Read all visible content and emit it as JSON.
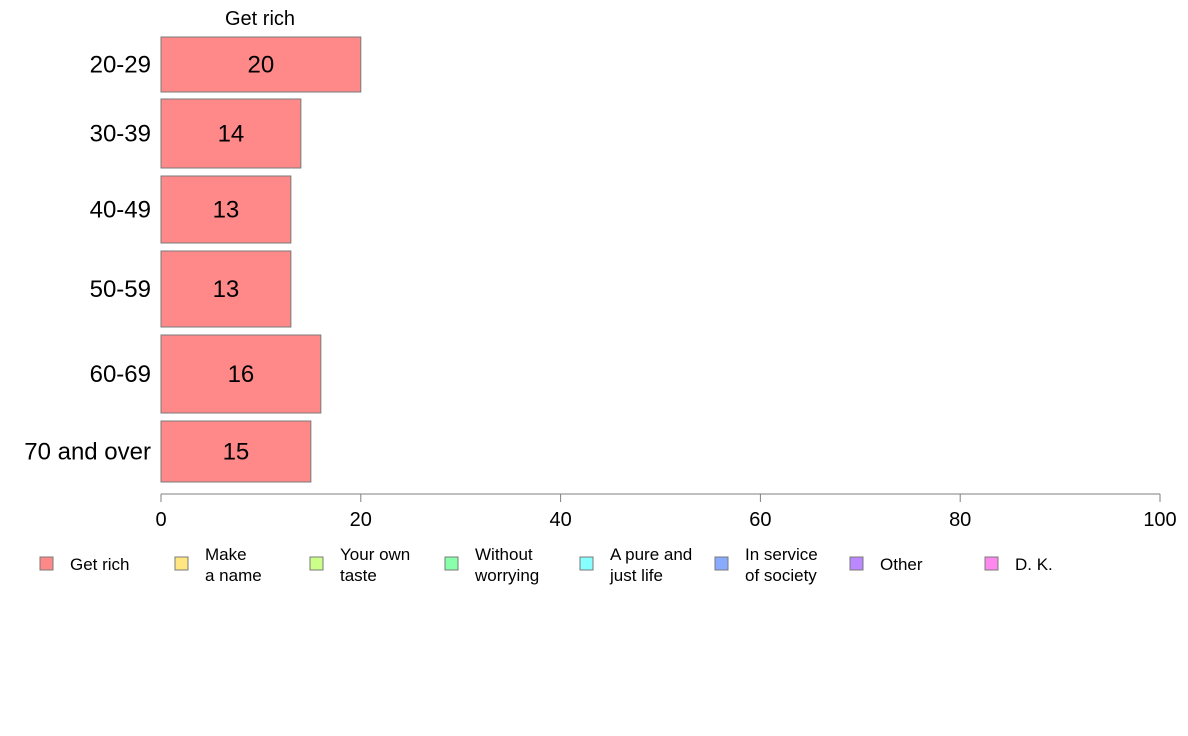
{
  "chart_data": {
    "type": "bar",
    "orientation": "horizontal",
    "title": "Get rich",
    "categories": [
      "20-29",
      "30-39",
      "40-49",
      "50-59",
      "60-69",
      "70 and over"
    ],
    "series": [
      {
        "name": "Get rich",
        "values": [
          20,
          14,
          13,
          13,
          16,
          15
        ]
      }
    ],
    "data_labels": [
      "20",
      "14",
      "13",
      "13",
      "16",
      "15"
    ],
    "xlim": [
      0,
      100
    ],
    "x_ticks": [
      0,
      20,
      40,
      60,
      80,
      100
    ],
    "grid": false,
    "legend_position": "bottom",
    "legend": [
      {
        "label": "Get rich",
        "color": "#FF8888"
      },
      {
        "label": "Make\na name",
        "color": "#FFE680"
      },
      {
        "label": "Your own\ntaste",
        "color": "#CCFF88"
      },
      {
        "label": "Without\nworrying",
        "color": "#88FFAA"
      },
      {
        "label": "A pure and\njust life",
        "color": "#88FFFF"
      },
      {
        "label": "In service\nof society",
        "color": "#88AAFF"
      },
      {
        "label": "Other",
        "color": "#BB88FF"
      },
      {
        "label": "D. K.",
        "color": "#FF88EE"
      }
    ]
  }
}
